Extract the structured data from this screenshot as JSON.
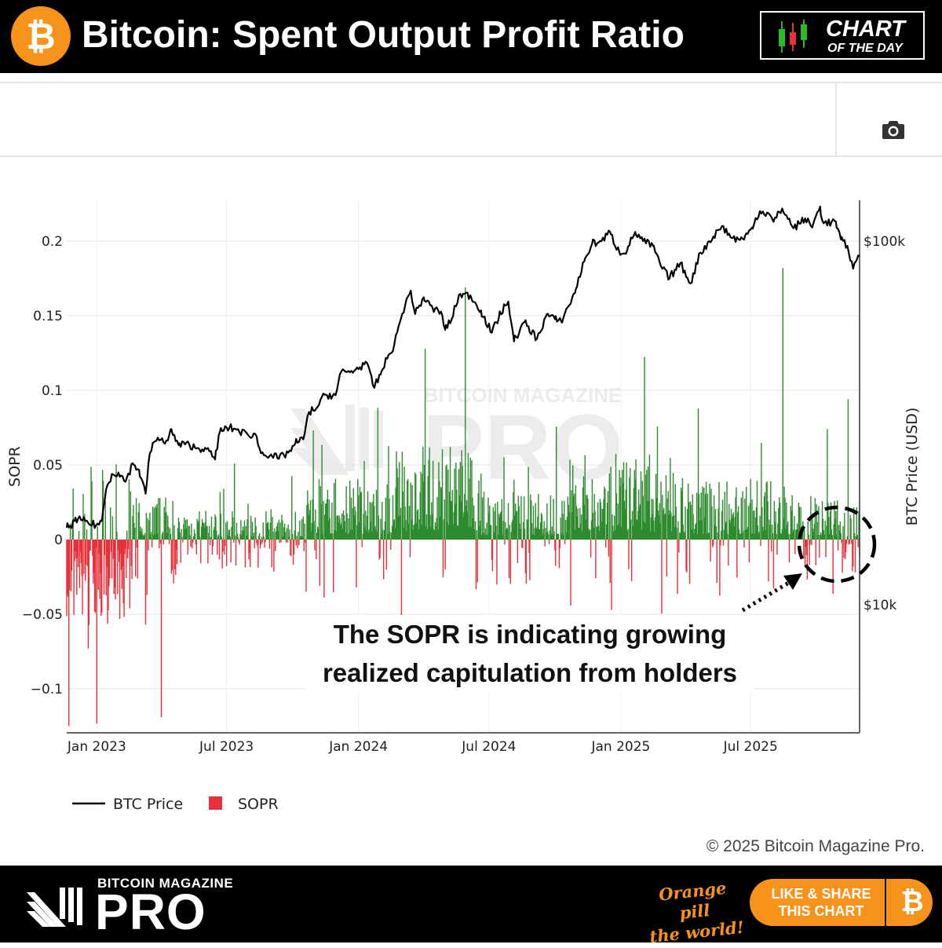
{
  "header": {
    "title": "Bitcoin: Spent Output Profit Ratio",
    "logo_glyph": "₿",
    "badge_line1": "CHART",
    "badge_line2": "OF THE DAY"
  },
  "toolbar": {
    "camera_icon": "camera-icon"
  },
  "colors": {
    "accent": "#f7931a",
    "positive": "#2e8b2e",
    "negative": "#e8303a",
    "price_line": "#000000"
  },
  "annotation": {
    "line1": "The SOPR is indicating growing",
    "line2": "realized capitulation from holders"
  },
  "copyright": "© 2025 Bitcoin Magazine Pro.",
  "watermark": {
    "small": "BITCOIN MAGAZINE",
    "big": "PRO"
  },
  "footer": {
    "brand_small": "BITCOIN MAGAZINE",
    "brand_big": "PRO",
    "slogan_line1": "Orange pill",
    "slogan_line2": "the world!",
    "share_line1": "LIKE & SHARE",
    "share_line2": "THIS CHART",
    "share_glyph": "₿"
  },
  "chart_data": {
    "type": "bar",
    "x_range": [
      "2022-11-20",
      "2025-11-30"
    ],
    "x_ticks": [
      {
        "date": "2023-01-01",
        "label": "Jan 2023"
      },
      {
        "date": "2023-07-01",
        "label": "Jul 2023"
      },
      {
        "date": "2024-01-01",
        "label": "Jan 2024"
      },
      {
        "date": "2024-07-01",
        "label": "Jul 2024"
      },
      {
        "date": "2025-01-01",
        "label": "Jan 2025"
      },
      {
        "date": "2025-07-01",
        "label": "Jul 2025"
      }
    ],
    "y_left": {
      "label": "SOPR",
      "range": [
        -0.125,
        0.225
      ],
      "ticks": [
        {
          "v": 0.2,
          "label": "0.2"
        },
        {
          "v": 0.15,
          "label": "0.15"
        },
        {
          "v": 0.1,
          "label": "0.1"
        },
        {
          "v": 0.05,
          "label": "0.05"
        },
        {
          "v": 0,
          "label": "0"
        },
        {
          "v": -0.05,
          "label": "−0.05"
        },
        {
          "v": -0.1,
          "label": "−0.1"
        }
      ]
    },
    "y_right": {
      "label": "BTC Price (USD)",
      "scale": "log",
      "range": [
        2500,
        190000
      ],
      "ticks": [
        {
          "v": 100000,
          "label": "$100k"
        },
        {
          "v": 10000,
          "label": "$10k"
        }
      ]
    },
    "grid": true,
    "legend": {
      "position": "bottom-left",
      "items": [
        {
          "label": "BTC Price",
          "kind": "line"
        },
        {
          "label": "SOPR",
          "kind": "bar"
        }
      ]
    },
    "series": [
      {
        "name": "BTC Price",
        "kind": "line",
        "axis": "right",
        "points": [
          [
            "2022-11-20",
            16300
          ],
          [
            "2022-11-25",
            16500
          ],
          [
            "2022-12-01",
            17000
          ],
          [
            "2022-12-10",
            17100
          ],
          [
            "2022-12-20",
            16800
          ],
          [
            "2022-12-31",
            16550
          ],
          [
            "2023-01-08",
            17000
          ],
          [
            "2023-01-14",
            20800
          ],
          [
            "2023-01-22",
            22900
          ],
          [
            "2023-01-31",
            23100
          ],
          [
            "2023-02-10",
            21800
          ],
          [
            "2023-02-20",
            24500
          ],
          [
            "2023-03-01",
            23500
          ],
          [
            "2023-03-10",
            20200
          ],
          [
            "2023-03-14",
            24500
          ],
          [
            "2023-03-20",
            27900
          ],
          [
            "2023-03-31",
            28400
          ],
          [
            "2023-04-10",
            28300
          ],
          [
            "2023-04-14",
            30400
          ],
          [
            "2023-04-25",
            27500
          ],
          [
            "2023-05-10",
            27600
          ],
          [
            "2023-05-20",
            26900
          ],
          [
            "2023-06-01",
            27000
          ],
          [
            "2023-06-15",
            25100
          ],
          [
            "2023-06-22",
            30000
          ],
          [
            "2023-07-05",
            30700
          ],
          [
            "2023-07-15",
            30300
          ],
          [
            "2023-07-31",
            29300
          ],
          [
            "2023-08-10",
            29500
          ],
          [
            "2023-08-18",
            26100
          ],
          [
            "2023-09-01",
            25900
          ],
          [
            "2023-09-12",
            25200
          ],
          [
            "2023-09-25",
            26200
          ],
          [
            "2023-10-05",
            27800
          ],
          [
            "2023-10-16",
            28500
          ],
          [
            "2023-10-24",
            33900
          ],
          [
            "2023-11-05",
            35000
          ],
          [
            "2023-11-15",
            37800
          ],
          [
            "2023-11-30",
            37700
          ],
          [
            "2023-12-08",
            43800
          ],
          [
            "2023-12-20",
            43600
          ],
          [
            "2024-01-03",
            45000
          ],
          [
            "2024-01-11",
            46600
          ],
          [
            "2024-01-23",
            39500
          ],
          [
            "2024-02-01",
            43000
          ],
          [
            "2024-02-10",
            47500
          ],
          [
            "2024-02-20",
            52000
          ],
          [
            "2024-03-01",
            62000
          ],
          [
            "2024-03-14",
            73100
          ],
          [
            "2024-03-20",
            63000
          ],
          [
            "2024-04-01",
            70000
          ],
          [
            "2024-04-14",
            65000
          ],
          [
            "2024-04-25",
            64000
          ],
          [
            "2024-05-01",
            57000
          ],
          [
            "2024-05-10",
            61000
          ],
          [
            "2024-05-20",
            71000
          ],
          [
            "2024-06-05",
            71000
          ],
          [
            "2024-06-20",
            64500
          ],
          [
            "2024-07-05",
            56000
          ],
          [
            "2024-07-15",
            62000
          ],
          [
            "2024-07-28",
            68200
          ],
          [
            "2024-08-05",
            53000
          ],
          [
            "2024-08-20",
            60000
          ],
          [
            "2024-09-06",
            53900
          ],
          [
            "2024-09-20",
            63000
          ],
          [
            "2024-10-01",
            61000
          ],
          [
            "2024-10-10",
            60000
          ],
          [
            "2024-10-29",
            72000
          ],
          [
            "2024-11-11",
            88000
          ],
          [
            "2024-11-22",
            98500
          ],
          [
            "2024-12-05",
            100000
          ],
          [
            "2024-12-17",
            106000
          ],
          [
            "2024-12-30",
            93000
          ],
          [
            "2025-01-10",
            94500
          ],
          [
            "2025-01-21",
            106000
          ],
          [
            "2025-02-01",
            100000
          ],
          [
            "2025-02-15",
            97000
          ],
          [
            "2025-02-28",
            84000
          ],
          [
            "2025-03-10",
            79000
          ],
          [
            "2025-03-25",
            87000
          ],
          [
            "2025-04-08",
            76500
          ],
          [
            "2025-04-22",
            93000
          ],
          [
            "2025-05-10",
            103000
          ],
          [
            "2025-05-22",
            110000
          ],
          [
            "2025-06-05",
            102000
          ],
          [
            "2025-06-22",
            101000
          ],
          [
            "2025-07-03",
            109000
          ],
          [
            "2025-07-14",
            121000
          ],
          [
            "2025-07-28",
            118000
          ],
          [
            "2025-08-02",
            113000
          ],
          [
            "2025-08-14",
            123000
          ],
          [
            "2025-08-30",
            108500
          ],
          [
            "2025-09-15",
            115500
          ],
          [
            "2025-09-25",
            109000
          ],
          [
            "2025-10-06",
            124500
          ],
          [
            "2025-10-11",
            112000
          ],
          [
            "2025-10-28",
            113000
          ],
          [
            "2025-11-04",
            101000
          ],
          [
            "2025-11-13",
            97000
          ],
          [
            "2025-11-21",
            84000
          ],
          [
            "2025-11-25",
            88000
          ],
          [
            "2025-11-30",
            91000
          ]
        ]
      },
      {
        "name": "SOPR",
        "kind": "bar",
        "axis": "left",
        "notable_spikes": [
          {
            "date": "2022-11-23",
            "v": -0.125
          },
          {
            "date": "2022-12-20",
            "v": -0.073
          },
          {
            "date": "2023-03-10",
            "v": -0.057
          },
          {
            "date": "2023-04-01",
            "v": -0.119
          },
          {
            "date": "2023-07-12",
            "v": 0.051
          },
          {
            "date": "2023-10-20",
            "v": -0.035
          },
          {
            "date": "2024-04-03",
            "v": 0.128
          },
          {
            "date": "2024-05-29",
            "v": 0.169
          },
          {
            "date": "2025-08-15",
            "v": 0.182
          },
          {
            "date": "2025-11-14",
            "v": 0.094
          },
          {
            "date": "2025-11-24",
            "v": -0.022
          }
        ]
      }
    ]
  }
}
